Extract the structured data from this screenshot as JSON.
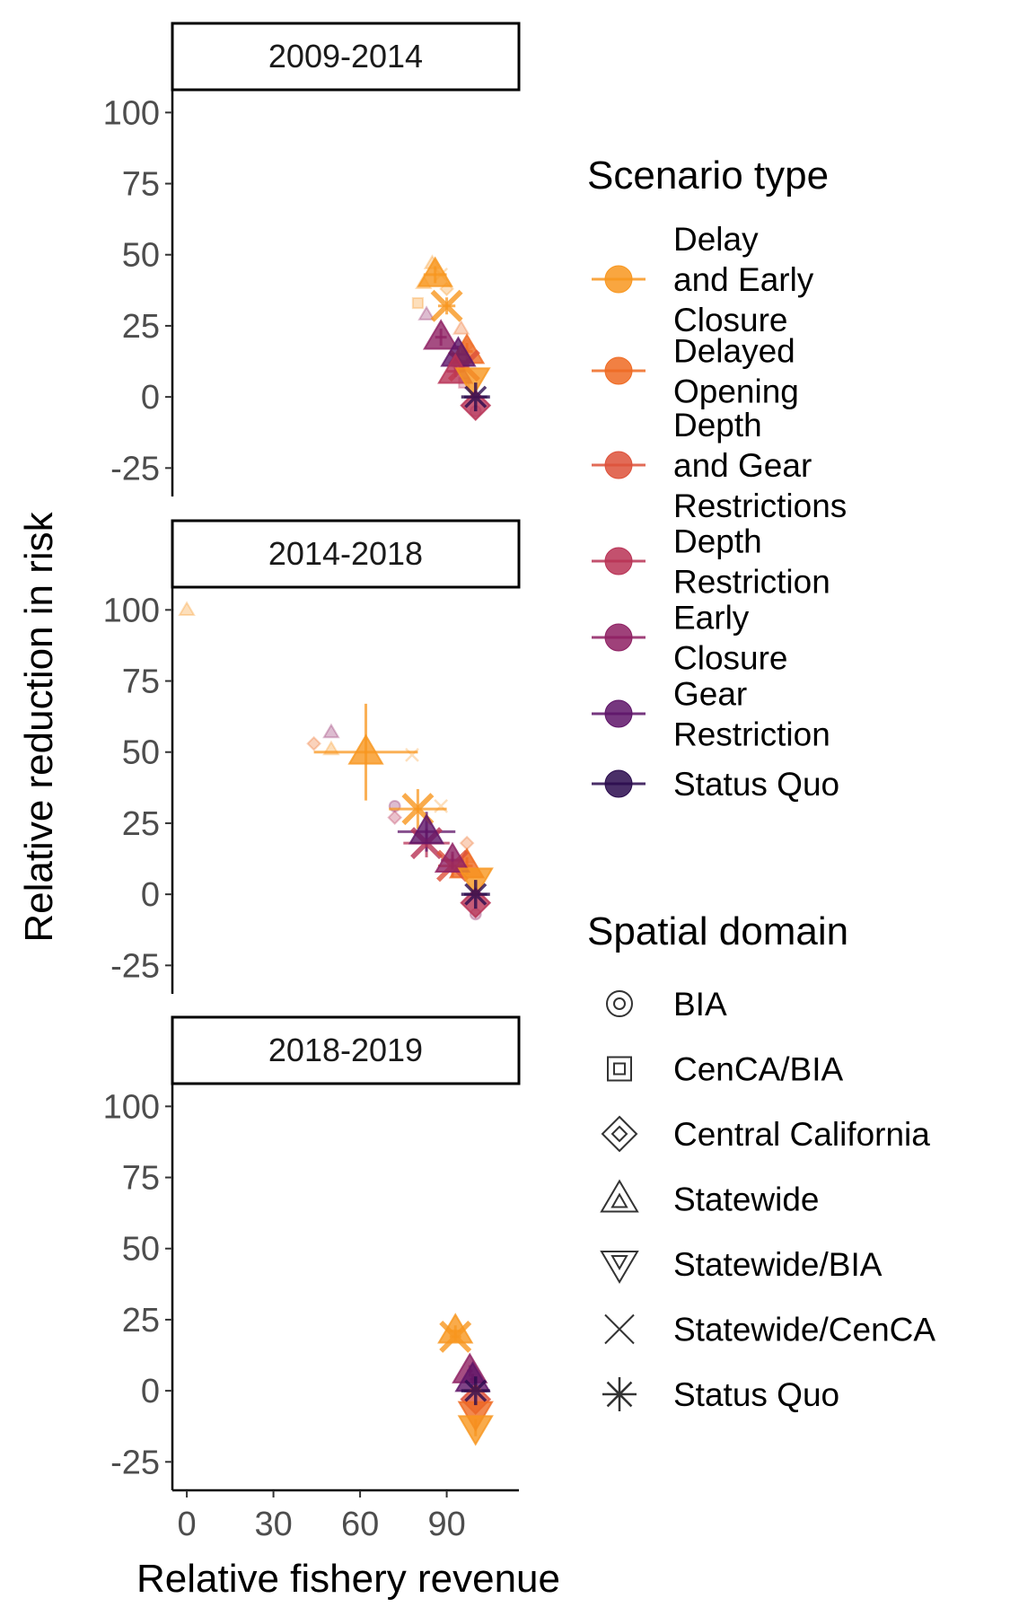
{
  "chart_data": {
    "type": "scatter",
    "xlabel": "Relative fishery revenue",
    "ylabel": "Relative reduction in risk",
    "xlim": [
      -5,
      115
    ],
    "ylim": [
      -35,
      108
    ],
    "x_ticks": [
      "0",
      "30",
      "60",
      "90"
    ],
    "x_tick_values": [
      0,
      30,
      60,
      90
    ],
    "y_ticks": [
      "100",
      "75",
      "50",
      "25",
      "0",
      "-25"
    ],
    "y_tick_values": [
      100,
      75,
      50,
      25,
      0,
      -25
    ],
    "grid": false,
    "legend_position": "right",
    "colors": {
      "Delay and Early Closure": "#F8961E",
      "Delayed Opening": "#EF6A22",
      "Depth and Gear Restrictions": "#DD513A",
      "Depth Restriction": "#B83255",
      "Early Closure": "#8E2063",
      "Gear Restriction": "#5E1468",
      "Status Quo": "#2A0B4D"
    },
    "legends": {
      "color": {
        "title": "Scenario type",
        "items": [
          {
            "lines": [
              "Delay",
              "and Early",
              "Closure"
            ],
            "key": "Delay and Early Closure"
          },
          {
            "lines": [
              "Delayed",
              "Opening"
            ],
            "key": "Delayed Opening"
          },
          {
            "lines": [
              "Depth",
              "and Gear",
              "Restrictions"
            ],
            "key": "Depth and Gear Restrictions"
          },
          {
            "lines": [
              "Depth",
              "Restriction"
            ],
            "key": "Depth Restriction"
          },
          {
            "lines": [
              "Early",
              "Closure"
            ],
            "key": "Early Closure"
          },
          {
            "lines": [
              "Gear",
              "Restriction"
            ],
            "key": "Gear Restriction"
          },
          {
            "lines": [
              "Status Quo"
            ],
            "key": "Status Quo"
          }
        ]
      },
      "shape": {
        "title": "Spatial domain",
        "items": [
          {
            "label": "BIA",
            "shape": "circle-in-circle"
          },
          {
            "label": "CenCA/BIA",
            "shape": "square-in-square"
          },
          {
            "label": "Central California",
            "shape": "diamond-in-diamond"
          },
          {
            "label": "Statewide",
            "shape": "triangle-in-triangle"
          },
          {
            "label": "Statewide/BIA",
            "shape": "inverted-triangle-in-triangle"
          },
          {
            "label": "Statewide/CenCA",
            "shape": "cross"
          },
          {
            "label": "Status Quo",
            "shape": "asterisk"
          }
        ]
      }
    },
    "panels": [
      {
        "label": "2009-2014",
        "faint_points": [
          {
            "x": 85,
            "y": 47,
            "scenario": "Delay and Early Closure",
            "shape": "triangle"
          },
          {
            "x": 88,
            "y": 43,
            "scenario": "Delay and Early Closure",
            "shape": "cross"
          },
          {
            "x": 82,
            "y": 40,
            "scenario": "Delay and Early Closure",
            "shape": "triangle"
          },
          {
            "x": 90,
            "y": 38,
            "scenario": "Delay and Early Closure",
            "shape": "diamond"
          },
          {
            "x": 80,
            "y": 33,
            "scenario": "Delay and Early Closure",
            "shape": "square"
          },
          {
            "x": 83,
            "y": 29,
            "scenario": "Early Closure",
            "shape": "triangle"
          },
          {
            "x": 95,
            "y": 24,
            "scenario": "Delayed Opening",
            "shape": "triangle"
          },
          {
            "x": 97,
            "y": 18,
            "scenario": "Delayed Opening",
            "shape": "diamond"
          },
          {
            "x": 93,
            "y": 12,
            "scenario": "Depth Restriction",
            "shape": "diamond"
          },
          {
            "x": 96,
            "y": 5,
            "scenario": "Depth Restriction",
            "shape": "square"
          },
          {
            "x": 100,
            "y": -5,
            "scenario": "Early Closure",
            "shape": "circle"
          }
        ],
        "points": [
          {
            "x": 86,
            "y": 43,
            "scenario": "Delay and Early Closure",
            "shape": "triangle",
            "xerr": 4,
            "yerr": 3
          },
          {
            "x": 90,
            "y": 32,
            "scenario": "Delay and Early Closure",
            "shape": "cross",
            "xerr": 3,
            "yerr": 3
          },
          {
            "x": 97,
            "y": 16,
            "scenario": "Delayed Opening",
            "shape": "triangle",
            "xerr": 2,
            "yerr": 3
          },
          {
            "x": 96,
            "y": 11,
            "scenario": "Depth and Gear Restrictions",
            "shape": "cross",
            "xerr": 2,
            "yerr": 2
          },
          {
            "x": 88,
            "y": 21,
            "scenario": "Early Closure",
            "shape": "triangle",
            "xerr": 2,
            "yerr": 3
          },
          {
            "x": 94,
            "y": 15,
            "scenario": "Gear Restriction",
            "shape": "triangle",
            "xerr": 3,
            "yerr": 3
          },
          {
            "x": 93,
            "y": 9,
            "scenario": "Depth Restriction",
            "shape": "triangle",
            "xerr": 3,
            "yerr": 2
          },
          {
            "x": 99,
            "y": 6,
            "scenario": "Delay and Early Closure",
            "shape": "inverted-triangle",
            "xerr": 0,
            "yerr": 0
          },
          {
            "x": 100,
            "y": -3,
            "scenario": "Depth Restriction",
            "shape": "diamond",
            "xerr": 0,
            "yerr": 0
          },
          {
            "x": 100,
            "y": 0,
            "scenario": "Status Quo",
            "shape": "asterisk",
            "xerr": 4,
            "yerr": 0
          }
        ]
      },
      {
        "label": "2014-2018",
        "faint_points": [
          {
            "x": 0,
            "y": 100,
            "scenario": "Delay and Early Closure",
            "shape": "triangle"
          },
          {
            "x": 44,
            "y": 53,
            "scenario": "Delayed Opening",
            "shape": "diamond"
          },
          {
            "x": 50,
            "y": 57,
            "scenario": "Early Closure",
            "shape": "triangle"
          },
          {
            "x": 50,
            "y": 51,
            "scenario": "Delay and Early Closure",
            "shape": "triangle"
          },
          {
            "x": 78,
            "y": 49,
            "scenario": "Delay and Early Closure",
            "shape": "cross"
          },
          {
            "x": 72,
            "y": 31,
            "scenario": "Early Closure",
            "shape": "circle"
          },
          {
            "x": 72,
            "y": 27,
            "scenario": "Depth Restriction",
            "shape": "diamond"
          },
          {
            "x": 88,
            "y": 31,
            "scenario": "Delay and Early Closure",
            "shape": "cross"
          },
          {
            "x": 97,
            "y": 18,
            "scenario": "Delayed Opening",
            "shape": "diamond"
          },
          {
            "x": 97,
            "y": 13,
            "scenario": "Delayed Opening",
            "shape": "triangle"
          },
          {
            "x": 100,
            "y": -7,
            "scenario": "Early Closure",
            "shape": "circle"
          }
        ],
        "points": [
          {
            "x": 62,
            "y": 50,
            "scenario": "Delay and Early Closure",
            "shape": "triangle",
            "xerr": 18,
            "yerr": 17
          },
          {
            "x": 80,
            "y": 30,
            "scenario": "Delay and Early Closure",
            "shape": "cross",
            "xerr": 10,
            "yerr": 7
          },
          {
            "x": 97,
            "y": 10,
            "scenario": "Delayed Opening",
            "shape": "triangle",
            "xerr": 2,
            "yerr": 3
          },
          {
            "x": 83,
            "y": 18,
            "scenario": "Depth Restriction",
            "shape": "cross",
            "xerr": 8,
            "yerr": 5
          },
          {
            "x": 92,
            "y": 10,
            "scenario": "Depth and Gear Restrictions",
            "shape": "cross",
            "xerr": 5,
            "yerr": 4
          },
          {
            "x": 83,
            "y": 22,
            "scenario": "Gear Restriction",
            "shape": "triangle",
            "xerr": 10,
            "yerr": 7
          },
          {
            "x": 92,
            "y": 12,
            "scenario": "Early Closure",
            "shape": "triangle",
            "xerr": 4,
            "yerr": 3
          },
          {
            "x": 100,
            "y": 5,
            "scenario": "Delay and Early Closure",
            "shape": "inverted-triangle",
            "xerr": 0,
            "yerr": 0
          },
          {
            "x": 100,
            "y": -3,
            "scenario": "Depth Restriction",
            "shape": "diamond",
            "xerr": 0,
            "yerr": 0
          },
          {
            "x": 100,
            "y": 0,
            "scenario": "Status Quo",
            "shape": "asterisk",
            "xerr": 4,
            "yerr": 0
          }
        ]
      },
      {
        "label": "2018-2019",
        "faint_points": [],
        "points": [
          {
            "x": 93,
            "y": 21,
            "scenario": "Delay and Early Closure",
            "shape": "triangle",
            "xerr": 2,
            "yerr": 2
          },
          {
            "x": 93,
            "y": 19,
            "scenario": "Delay and Early Closure",
            "shape": "cross",
            "xerr": 2,
            "yerr": 2
          },
          {
            "x": 98,
            "y": 7,
            "scenario": "Early Closure",
            "shape": "triangle",
            "xerr": 1,
            "yerr": 2
          },
          {
            "x": 99,
            "y": 4,
            "scenario": "Gear Restriction",
            "shape": "triangle",
            "xerr": 1,
            "yerr": 2
          },
          {
            "x": 100,
            "y": -3,
            "scenario": "Depth and Gear Restrictions",
            "shape": "diamond",
            "xerr": 0,
            "yerr": 0
          },
          {
            "x": 100,
            "y": -8,
            "scenario": "Delayed Opening",
            "shape": "inverted-triangle",
            "xerr": 0,
            "yerr": 0
          },
          {
            "x": 100,
            "y": -13,
            "scenario": "Delay and Early Closure",
            "shape": "inverted-triangle",
            "xerr": 0,
            "yerr": 3
          },
          {
            "x": 100,
            "y": 0,
            "scenario": "Status Quo",
            "shape": "asterisk",
            "xerr": 4,
            "yerr": 0
          }
        ]
      }
    ]
  }
}
